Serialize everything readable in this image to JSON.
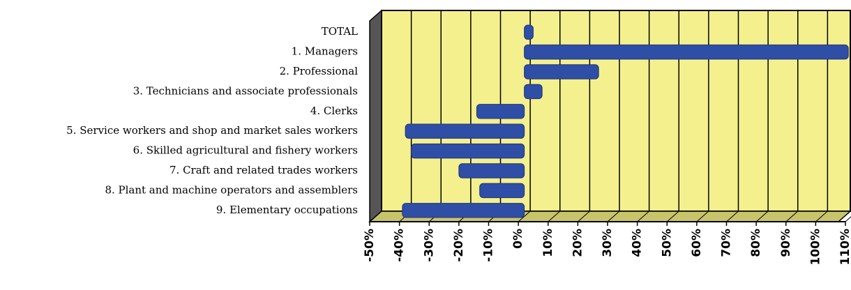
{
  "chart_data": {
    "type": "bar",
    "orientation": "horizontal",
    "categories": [
      "TOTAL",
      "1. Managers",
      "2. Professional",
      "3. Technicians and associate professionals",
      "4. Clerks",
      "5. Service workers and shop and market sales workers",
      "6. Skilled agricultural and fishery workers",
      "7. Craft and related trades workers",
      "8. Plant and machine operators and assemblers",
      "9. Elementary occupations"
    ],
    "values": [
      3,
      109,
      25,
      6,
      -16,
      -40,
      -38,
      -22,
      -15,
      -41
    ],
    "color": "#2f4ea6",
    "xlim": [
      -50,
      110
    ],
    "xticks": [
      {
        "value": -50,
        "label": "-50%"
      },
      {
        "value": -40,
        "label": "-40%"
      },
      {
        "value": -30,
        "label": "-30%"
      },
      {
        "value": -20,
        "label": "-20%"
      },
      {
        "value": -10,
        "label": "-10%"
      },
      {
        "value": 0,
        "label": "0%"
      },
      {
        "value": 10,
        "label": "10%"
      },
      {
        "value": 20,
        "label": "20%"
      },
      {
        "value": 30,
        "label": "30%"
      },
      {
        "value": 40,
        "label": "40%"
      },
      {
        "value": 50,
        "label": "50%"
      },
      {
        "value": 60,
        "label": "60%"
      },
      {
        "value": 70,
        "label": "70%"
      },
      {
        "value": 80,
        "label": "80%"
      },
      {
        "value": 90,
        "label": "90%"
      },
      {
        "value": 100,
        "label": "100%"
      },
      {
        "value": 110,
        "label": "110%"
      }
    ],
    "grid": true
  }
}
